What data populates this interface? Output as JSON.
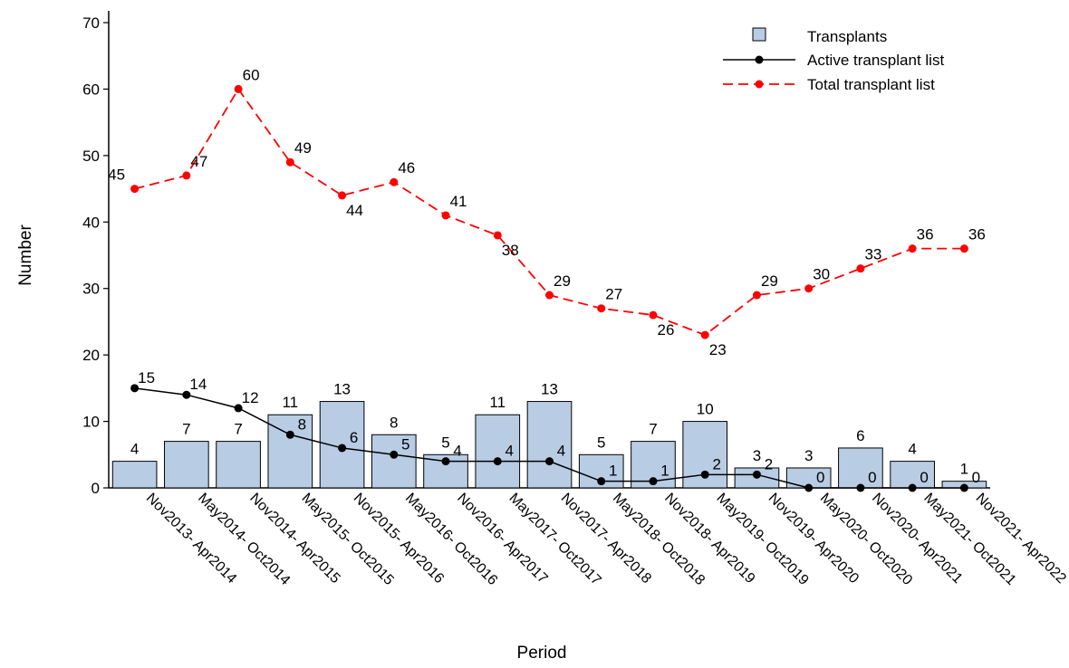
{
  "chart_data": {
    "type": "bar",
    "title": "",
    "xlabel": "Period",
    "ylabel": "Number",
    "ylim": [
      0,
      70
    ],
    "yticks": [
      0,
      10,
      20,
      30,
      40,
      50,
      60,
      70
    ],
    "grid": false,
    "legend_position": "top-right",
    "categories": [
      "Nov2013- Apr2014",
      "May2014- Oct2014",
      "Nov2014- Apr2015",
      "May2015- Oct2015",
      "Nov2015- Apr2016",
      "May2016- Oct2016",
      "Nov2016- Apr2017",
      "May2017- Oct2017",
      "Nov2017- Apr2018",
      "May2018- Oct2018",
      "Nov2018- Apr2019",
      "May2019- Oct2019",
      "Nov2019- Apr2020",
      "May2020- Oct2020",
      "Nov2020- Apr2021",
      "May2021- Oct2021",
      "Nov2021- Apr2022"
    ],
    "series": [
      {
        "name": "Transplants",
        "kind": "bar",
        "color": "#b8cce4",
        "values": [
          4,
          7,
          7,
          11,
          13,
          8,
          5,
          11,
          13,
          5,
          7,
          10,
          3,
          3,
          6,
          4,
          1
        ]
      },
      {
        "name": "Active transplant list",
        "kind": "line",
        "color": "#000000",
        "values": [
          15,
          14,
          12,
          8,
          6,
          5,
          4,
          4,
          4,
          1,
          1,
          2,
          2,
          0,
          0,
          0,
          0
        ]
      },
      {
        "name": "Total transplant list",
        "kind": "line-dashed",
        "color": "#ff0000",
        "values": [
          45,
          47,
          60,
          49,
          44,
          46,
          41,
          38,
          29,
          27,
          26,
          23,
          29,
          30,
          33,
          36,
          36
        ]
      }
    ]
  }
}
